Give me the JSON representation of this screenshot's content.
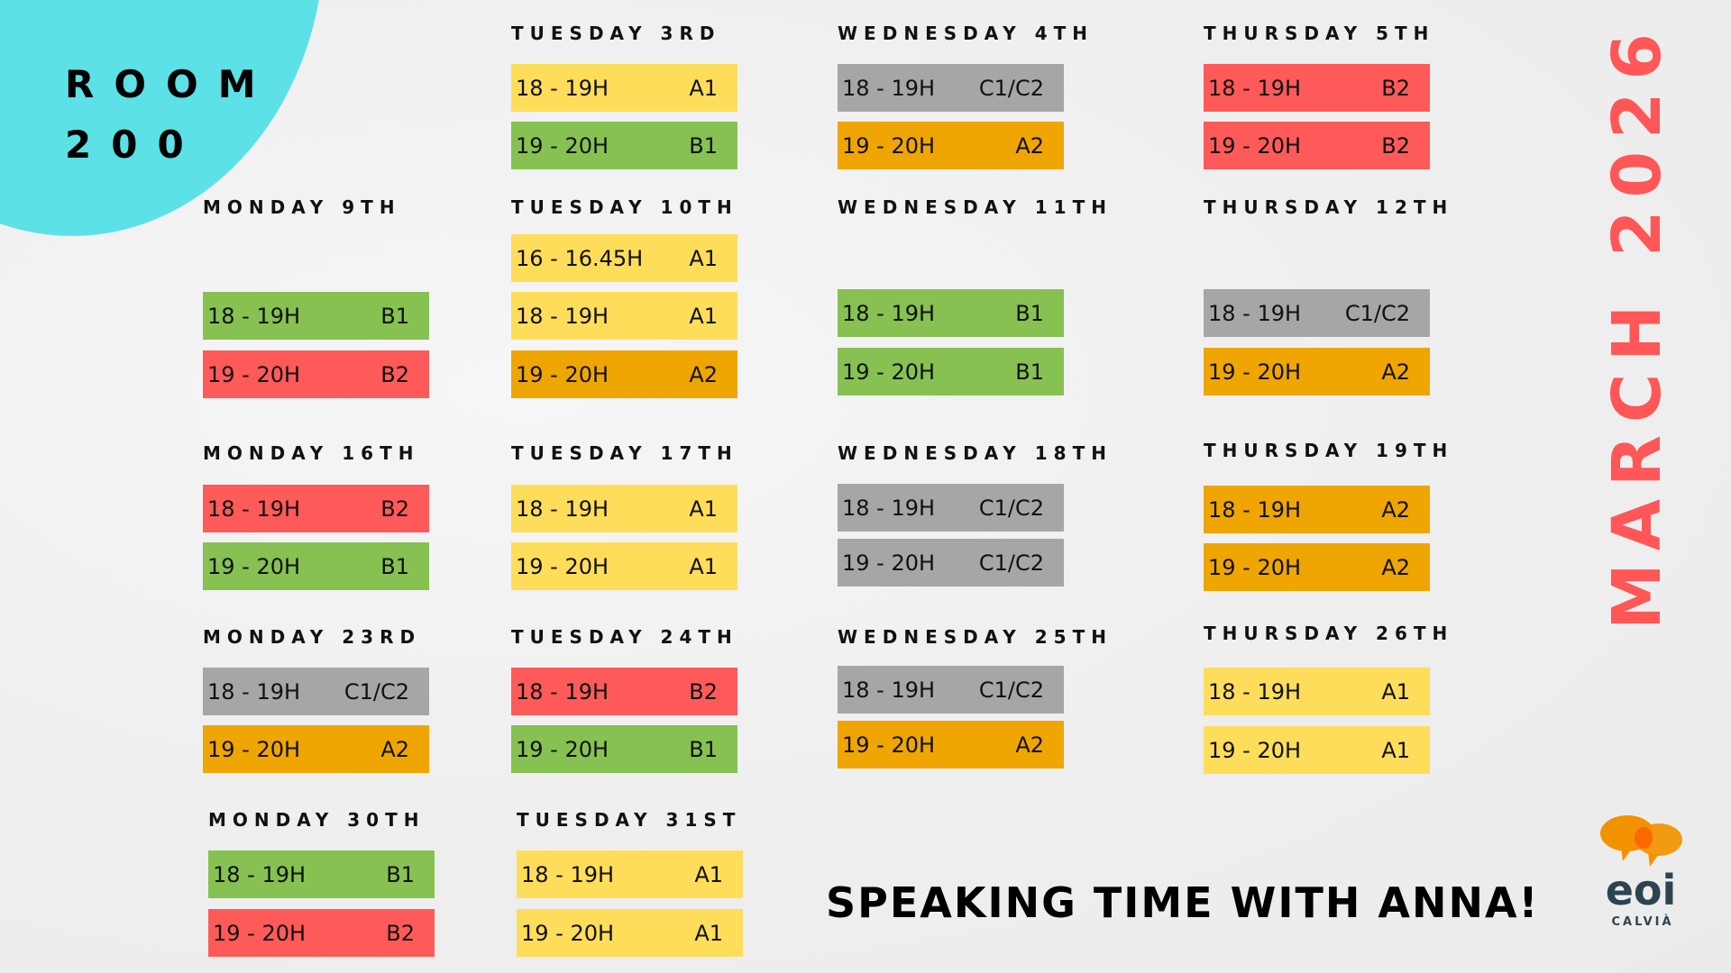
{
  "title": {
    "line1": "ROOM",
    "line2": "200"
  },
  "month": "MARCH 2026",
  "tagline": "SPEAKING TIME WITH ANNA!",
  "logo": {
    "text": "eoi",
    "subtext": "CALVIÀ"
  },
  "colors": {
    "A1": "#fedd5a",
    "A2": "#efa502",
    "B1": "#86c152",
    "B2": "#ff5a5a",
    "C1/C2": "#a6a6a6",
    "accent": "#ff5757",
    "corner": "#5ce1e6"
  },
  "days": [
    {
      "heading": "TUESDAY 3RD",
      "slots": [
        {
          "time": "18 - 19H",
          "level": "A1"
        },
        {
          "time": "19 - 20H",
          "level": "B1"
        }
      ]
    },
    {
      "heading": "WEDNESDAY 4TH",
      "slots": [
        {
          "time": "18 - 19H",
          "level": "C1/C2"
        },
        {
          "time": "19 - 20H",
          "level": "A2"
        }
      ]
    },
    {
      "heading": "THURSDAY 5TH",
      "slots": [
        {
          "time": "18 - 19H",
          "level": "B2"
        },
        {
          "time": "19 - 20H",
          "level": "B2"
        }
      ]
    },
    {
      "heading": "MONDAY 9TH",
      "slots": [
        {
          "time": "18 - 19H",
          "level": "B1"
        },
        {
          "time": "19 - 20H",
          "level": "B2"
        }
      ]
    },
    {
      "heading": "TUESDAY 10TH",
      "slots": [
        {
          "time": "16 - 16.45H",
          "level": "A1"
        },
        {
          "time": "18 - 19H",
          "level": "A1"
        },
        {
          "time": "19 - 20H",
          "level": "A2"
        }
      ]
    },
    {
      "heading": "WEDNESDAY 11TH",
      "slots": [
        {
          "time": "18 - 19H",
          "level": "B1"
        },
        {
          "time": "19 - 20H",
          "level": "B1"
        }
      ]
    },
    {
      "heading": "THURSDAY 12TH",
      "slots": [
        {
          "time": "18 - 19H",
          "level": "C1/C2"
        },
        {
          "time": "19 - 20H",
          "level": "A2"
        }
      ]
    },
    {
      "heading": "MONDAY 16TH",
      "slots": [
        {
          "time": "18 - 19H",
          "level": "B2"
        },
        {
          "time": "19 - 20H",
          "level": "B1"
        }
      ]
    },
    {
      "heading": "TUESDAY 17TH",
      "slots": [
        {
          "time": "18 - 19H",
          "level": "A1"
        },
        {
          "time": "19 - 20H",
          "level": "A1"
        }
      ]
    },
    {
      "heading": "WEDNESDAY 18TH",
      "slots": [
        {
          "time": "18 - 19H",
          "level": "C1/C2"
        },
        {
          "time": "19 - 20H",
          "level": "C1/C2"
        }
      ]
    },
    {
      "heading": "THURSDAY 19TH",
      "slots": [
        {
          "time": "18 - 19H",
          "level": "A2"
        },
        {
          "time": "19 - 20H",
          "level": "A2"
        }
      ]
    },
    {
      "heading": "MONDAY 23RD",
      "slots": [
        {
          "time": "18 - 19H",
          "level": "C1/C2"
        },
        {
          "time": "19 - 20H",
          "level": "A2"
        }
      ]
    },
    {
      "heading": "TUESDAY 24TH",
      "slots": [
        {
          "time": "18 - 19H",
          "level": "B2"
        },
        {
          "time": "19 - 20H",
          "level": "B1"
        }
      ]
    },
    {
      "heading": "WEDNESDAY 25TH",
      "slots": [
        {
          "time": "18 - 19H",
          "level": "C1/C2"
        },
        {
          "time": "19 - 20H",
          "level": "A2"
        }
      ]
    },
    {
      "heading": "THURSDAY 26TH",
      "slots": [
        {
          "time": "18 - 19H",
          "level": "A1"
        },
        {
          "time": "19 - 20H",
          "level": "A1"
        }
      ]
    },
    {
      "heading": "MONDAY 30TH",
      "slots": [
        {
          "time": "18 - 19H",
          "level": "B1"
        },
        {
          "time": "19 - 20H",
          "level": "B2"
        }
      ]
    },
    {
      "heading": "TUESDAY 31ST",
      "slots": [
        {
          "time": "18 - 19H",
          "level": "A1"
        },
        {
          "time": "19 - 20H",
          "level": "A1"
        }
      ]
    }
  ]
}
